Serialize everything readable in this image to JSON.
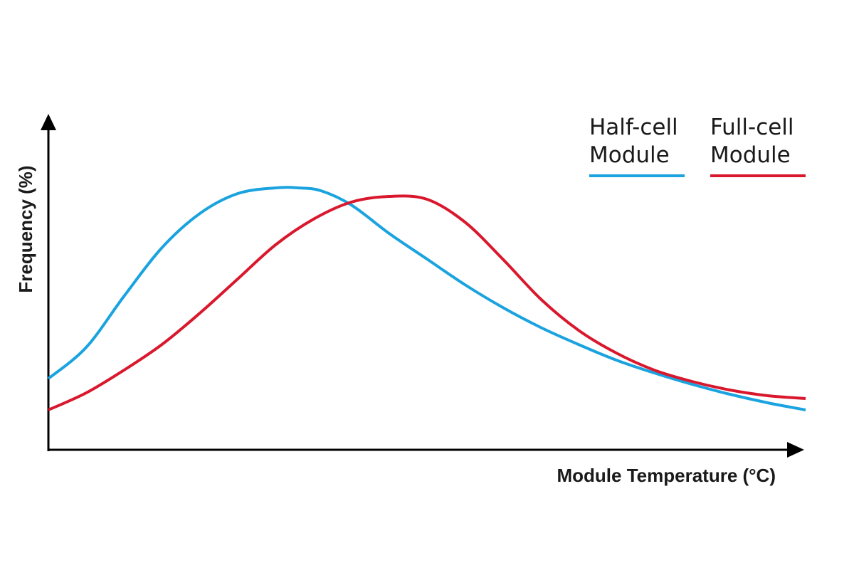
{
  "chart_data": {
    "type": "line",
    "title": "",
    "xlabel": "Module Temperature (°C)",
    "ylabel": "Frequency (%)",
    "grid": false,
    "x_ticks": false,
    "y_ticks": false,
    "legend_position": "top-right",
    "xlim": [
      0,
      100
    ],
    "ylim": [
      0,
      100
    ],
    "series": [
      {
        "name": "Half-cell Module",
        "legend_line1": "Half-cell",
        "legend_line2": "Module",
        "color": "#1aa3df",
        "x": [
          0,
          5,
          10,
          15,
          20,
          25,
          30,
          33,
          36,
          40,
          45,
          50,
          55,
          60,
          65,
          70,
          75,
          80,
          85,
          90,
          95,
          100
        ],
        "y": [
          25,
          36,
          54,
          71,
          83,
          90,
          92,
          92,
          91,
          86,
          76,
          67,
          58,
          50,
          43,
          37,
          31.5,
          27,
          23,
          19.5,
          16.5,
          14
        ]
      },
      {
        "name": "Full-cell Module",
        "legend_line1": "Full-cell",
        "legend_line2": "Module",
        "color": "#d9182d",
        "x": [
          0,
          5,
          10,
          15,
          20,
          25,
          30,
          35,
          40,
          45,
          50,
          55,
          60,
          65,
          70,
          75,
          80,
          85,
          90,
          95,
          100
        ],
        "y": [
          14,
          20,
          28,
          37,
          48,
          60,
          72,
          81,
          87,
          89,
          88,
          80,
          67,
          53,
          42,
          34,
          28,
          24,
          21,
          19,
          18
        ]
      }
    ]
  }
}
